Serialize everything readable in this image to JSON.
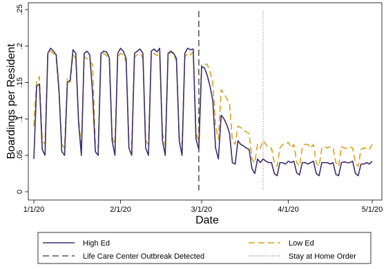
{
  "chart_data": {
    "type": "line",
    "title": "",
    "xlabel": "Date",
    "ylabel": "Boardings per Resident",
    "x_start": "2020-01-01",
    "x_end": "2020-05-01",
    "x_ticks": [
      {
        "date": "2020-01-01",
        "label": "1/1/20"
      },
      {
        "date": "2020-02-01",
        "label": "2/1/20"
      },
      {
        "date": "2020-03-01",
        "label": "3/1/20"
      },
      {
        "date": "2020-04-01",
        "label": "4/1/20"
      },
      {
        "date": "2020-05-01",
        "label": "5/1/20"
      }
    ],
    "ylim": [
      0,
      0.25
    ],
    "y_ticks": [
      {
        "value": 0,
        "label": "0"
      },
      {
        "value": 0.05,
        "label": ".05"
      },
      {
        "value": 0.1,
        "label": ".1"
      },
      {
        "value": 0.15,
        "label": ".15"
      },
      {
        "value": 0.2,
        "label": ".2"
      },
      {
        "value": 0.25,
        "label": ".25"
      }
    ],
    "grid": false,
    "legend_position": "bottom",
    "vlines": [
      {
        "name": "Life Care Center Outbreak Detected",
        "date": "2020-02-29",
        "style": "dashed",
        "color": "#333333"
      },
      {
        "name": "Stay at Home Order",
        "date": "2020-03-23",
        "style": "dotted",
        "color": "#777777"
      }
    ],
    "series": [
      {
        "name": "High Ed",
        "color": "#3b2b6b",
        "style": "solid",
        "x": [
          "2020-01-01",
          "2020-01-02",
          "2020-01-03",
          "2020-01-04",
          "2020-01-05",
          "2020-01-06",
          "2020-01-07",
          "2020-01-08",
          "2020-01-09",
          "2020-01-10",
          "2020-01-11",
          "2020-01-12",
          "2020-01-13",
          "2020-01-14",
          "2020-01-15",
          "2020-01-16",
          "2020-01-17",
          "2020-01-18",
          "2020-01-19",
          "2020-01-20",
          "2020-01-21",
          "2020-01-22",
          "2020-01-23",
          "2020-01-24",
          "2020-01-25",
          "2020-01-26",
          "2020-01-27",
          "2020-01-28",
          "2020-01-29",
          "2020-01-30",
          "2020-01-31",
          "2020-02-01",
          "2020-02-02",
          "2020-02-03",
          "2020-02-04",
          "2020-02-05",
          "2020-02-06",
          "2020-02-07",
          "2020-02-08",
          "2020-02-09",
          "2020-02-10",
          "2020-02-11",
          "2020-02-12",
          "2020-02-13",
          "2020-02-14",
          "2020-02-15",
          "2020-02-16",
          "2020-02-17",
          "2020-02-18",
          "2020-02-19",
          "2020-02-20",
          "2020-02-21",
          "2020-02-22",
          "2020-02-23",
          "2020-02-24",
          "2020-02-25",
          "2020-02-26",
          "2020-02-27",
          "2020-02-28",
          "2020-02-29",
          "2020-03-01",
          "2020-03-02",
          "2020-03-03",
          "2020-03-04",
          "2020-03-05",
          "2020-03-06",
          "2020-03-07",
          "2020-03-08",
          "2020-03-09",
          "2020-03-10",
          "2020-03-11",
          "2020-03-12",
          "2020-03-13",
          "2020-03-14",
          "2020-03-15",
          "2020-03-16",
          "2020-03-17",
          "2020-03-18",
          "2020-03-19",
          "2020-03-20",
          "2020-03-21",
          "2020-03-22",
          "2020-03-23",
          "2020-03-24",
          "2020-03-25",
          "2020-03-26",
          "2020-03-27",
          "2020-03-28",
          "2020-03-29",
          "2020-03-30",
          "2020-03-31",
          "2020-04-01",
          "2020-04-02",
          "2020-04-03",
          "2020-04-04",
          "2020-04-05",
          "2020-04-06",
          "2020-04-07",
          "2020-04-08",
          "2020-04-09",
          "2020-04-10",
          "2020-04-11",
          "2020-04-12",
          "2020-04-13",
          "2020-04-14",
          "2020-04-15",
          "2020-04-16",
          "2020-04-17",
          "2020-04-18",
          "2020-04-19",
          "2020-04-20",
          "2020-04-21",
          "2020-04-22",
          "2020-04-23",
          "2020-04-24",
          "2020-04-25",
          "2020-04-26",
          "2020-04-27",
          "2020-04-28",
          "2020-04-29",
          "2020-04-30",
          "2020-05-01"
        ],
        "values": [
          0.045,
          0.145,
          0.148,
          0.058,
          0.05,
          0.19,
          0.197,
          0.193,
          0.188,
          0.14,
          0.055,
          0.05,
          0.15,
          0.153,
          0.195,
          0.19,
          0.095,
          0.05,
          0.19,
          0.193,
          0.188,
          0.135,
          0.055,
          0.05,
          0.19,
          0.193,
          0.192,
          0.184,
          0.07,
          0.05,
          0.19,
          0.197,
          0.193,
          0.183,
          0.06,
          0.05,
          0.19,
          0.193,
          0.196,
          0.19,
          0.06,
          0.05,
          0.193,
          0.196,
          0.192,
          0.197,
          0.07,
          0.05,
          0.19,
          0.193,
          0.19,
          0.183,
          0.07,
          0.05,
          0.19,
          0.197,
          0.195,
          0.196,
          0.072,
          0.058,
          0.172,
          0.17,
          0.16,
          0.145,
          0.125,
          0.06,
          0.045,
          0.105,
          0.1,
          0.092,
          0.08,
          0.04,
          0.038,
          0.07,
          0.065,
          0.063,
          0.06,
          0.058,
          0.032,
          0.025,
          0.045,
          0.04,
          0.045,
          0.042,
          0.04,
          0.04,
          0.025,
          0.022,
          0.04,
          0.04,
          0.038,
          0.042,
          0.04,
          0.042,
          0.026,
          0.023,
          0.04,
          0.04,
          0.038,
          0.04,
          0.042,
          0.025,
          0.022,
          0.04,
          0.04,
          0.04,
          0.038,
          0.04,
          0.024,
          0.022,
          0.04,
          0.041,
          0.04,
          0.04,
          0.042,
          0.025,
          0.022,
          0.038,
          0.038,
          0.04,
          0.038,
          0.042
        ]
      },
      {
        "name": "Low Ed",
        "color": "#d4a21a",
        "style": "dashed",
        "x": [
          "2020-01-01",
          "2020-01-02",
          "2020-01-03",
          "2020-01-04",
          "2020-01-05",
          "2020-01-06",
          "2020-01-07",
          "2020-01-08",
          "2020-01-09",
          "2020-01-10",
          "2020-01-11",
          "2020-01-12",
          "2020-01-13",
          "2020-01-14",
          "2020-01-15",
          "2020-01-16",
          "2020-01-17",
          "2020-01-18",
          "2020-01-19",
          "2020-01-20",
          "2020-01-21",
          "2020-01-22",
          "2020-01-23",
          "2020-01-24",
          "2020-01-25",
          "2020-01-26",
          "2020-01-27",
          "2020-01-28",
          "2020-01-29",
          "2020-01-30",
          "2020-01-31",
          "2020-02-01",
          "2020-02-02",
          "2020-02-03",
          "2020-02-04",
          "2020-02-05",
          "2020-02-06",
          "2020-02-07",
          "2020-02-08",
          "2020-02-09",
          "2020-02-10",
          "2020-02-11",
          "2020-02-12",
          "2020-02-13",
          "2020-02-14",
          "2020-02-15",
          "2020-02-16",
          "2020-02-17",
          "2020-02-18",
          "2020-02-19",
          "2020-02-20",
          "2020-02-21",
          "2020-02-22",
          "2020-02-23",
          "2020-02-24",
          "2020-02-25",
          "2020-02-26",
          "2020-02-27",
          "2020-02-28",
          "2020-02-29",
          "2020-03-01",
          "2020-03-02",
          "2020-03-03",
          "2020-03-04",
          "2020-03-05",
          "2020-03-06",
          "2020-03-07",
          "2020-03-08",
          "2020-03-09",
          "2020-03-10",
          "2020-03-11",
          "2020-03-12",
          "2020-03-13",
          "2020-03-14",
          "2020-03-15",
          "2020-03-16",
          "2020-03-17",
          "2020-03-18",
          "2020-03-19",
          "2020-03-20",
          "2020-03-21",
          "2020-03-22",
          "2020-03-23",
          "2020-03-24",
          "2020-03-25",
          "2020-03-26",
          "2020-03-27",
          "2020-03-28",
          "2020-03-29",
          "2020-03-30",
          "2020-03-31",
          "2020-04-01",
          "2020-04-02",
          "2020-04-03",
          "2020-04-04",
          "2020-04-05",
          "2020-04-06",
          "2020-04-07",
          "2020-04-08",
          "2020-04-09",
          "2020-04-10",
          "2020-04-11",
          "2020-04-12",
          "2020-04-13",
          "2020-04-14",
          "2020-04-15",
          "2020-04-16",
          "2020-04-17",
          "2020-04-18",
          "2020-04-19",
          "2020-04-20",
          "2020-04-21",
          "2020-04-22",
          "2020-04-23",
          "2020-04-24",
          "2020-04-25",
          "2020-04-26",
          "2020-04-27",
          "2020-04-28",
          "2020-04-29",
          "2020-04-30",
          "2020-05-01"
        ],
        "values": [
          0.09,
          0.152,
          0.158,
          0.07,
          0.065,
          0.188,
          0.193,
          0.19,
          0.183,
          0.135,
          0.065,
          0.06,
          0.155,
          0.15,
          0.188,
          0.183,
          0.1,
          0.06,
          0.185,
          0.183,
          0.178,
          0.175,
          0.065,
          0.06,
          0.188,
          0.19,
          0.187,
          0.18,
          0.075,
          0.065,
          0.185,
          0.19,
          0.188,
          0.178,
          0.07,
          0.065,
          0.185,
          0.188,
          0.19,
          0.184,
          0.07,
          0.065,
          0.188,
          0.19,
          0.187,
          0.19,
          0.08,
          0.063,
          0.185,
          0.193,
          0.188,
          0.18,
          0.075,
          0.065,
          0.185,
          0.19,
          0.188,
          0.192,
          0.08,
          0.07,
          0.175,
          0.175,
          0.175,
          0.165,
          0.15,
          0.09,
          0.072,
          0.14,
          0.135,
          0.128,
          0.12,
          0.07,
          0.065,
          0.09,
          0.088,
          0.085,
          0.082,
          0.08,
          0.045,
          0.04,
          0.065,
          0.06,
          0.07,
          0.065,
          0.06,
          0.06,
          0.04,
          0.035,
          0.06,
          0.065,
          0.065,
          0.068,
          0.06,
          0.065,
          0.04,
          0.035,
          0.06,
          0.065,
          0.065,
          0.06,
          0.065,
          0.04,
          0.035,
          0.06,
          0.062,
          0.06,
          0.062,
          0.06,
          0.04,
          0.035,
          0.062,
          0.06,
          0.06,
          0.062,
          0.06,
          0.04,
          0.035,
          0.058,
          0.06,
          0.06,
          0.058,
          0.065
        ]
      }
    ]
  },
  "legend": {
    "items": [
      {
        "label": "High Ed",
        "series": 0
      },
      {
        "label": "Low Ed",
        "series": 1
      },
      {
        "label": "Life Care Center Outbreak Detected",
        "vline": 0
      },
      {
        "label": "Stay at Home Order",
        "vline": 1
      }
    ]
  }
}
